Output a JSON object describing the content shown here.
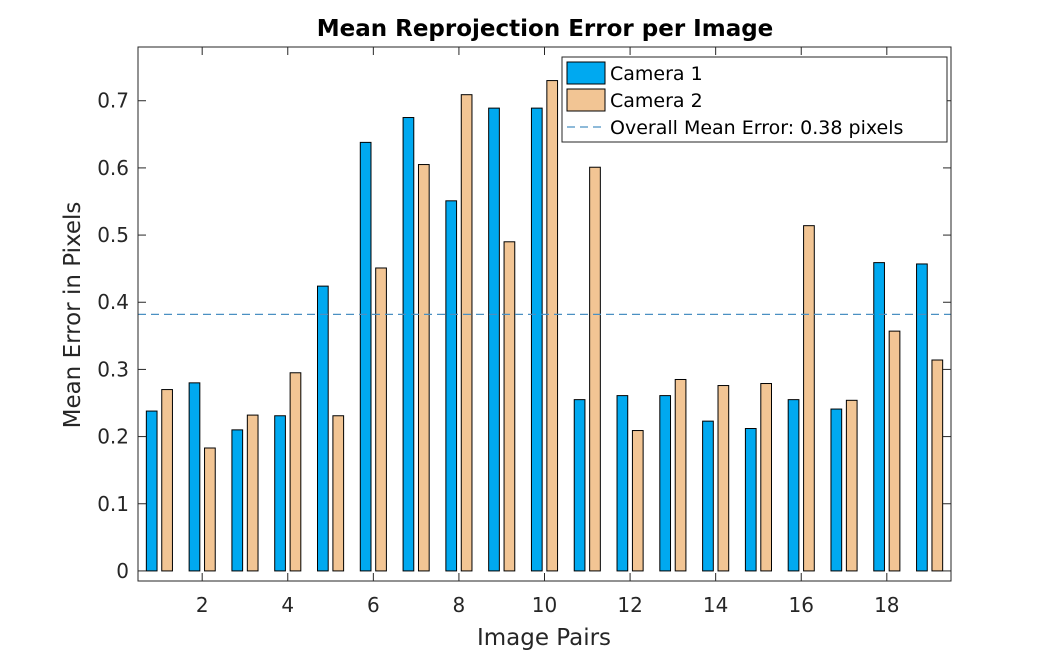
{
  "chart_data": {
    "type": "bar",
    "title": "Mean Reprojection Error per Image",
    "xlabel": "Image Pairs",
    "ylabel": "Mean Error in Pixels",
    "categories": [
      1,
      2,
      3,
      4,
      5,
      6,
      7,
      8,
      9,
      10,
      11,
      12,
      13,
      14,
      15,
      16,
      17,
      18,
      19
    ],
    "xlim": [
      0.5,
      19.5
    ],
    "ylim": [
      -0.015,
      0.78
    ],
    "xticks": [
      2,
      4,
      6,
      8,
      10,
      12,
      14,
      16,
      18
    ],
    "xtick_labels": [
      "2",
      "4",
      "6",
      "8",
      "10",
      "12",
      "14",
      "16",
      "18"
    ],
    "yticks": [
      0,
      0.1,
      0.2,
      0.3,
      0.4,
      0.5,
      0.6,
      0.7
    ],
    "ytick_labels": [
      "0",
      "0.1",
      "0.2",
      "0.3",
      "0.4",
      "0.5",
      "0.6",
      "0.7"
    ],
    "grid": false,
    "legend_position": "top-right",
    "series": [
      {
        "name": "Camera 1",
        "color": "#00A9F0",
        "values": [
          0.238,
          0.28,
          0.21,
          0.231,
          0.424,
          0.638,
          0.675,
          0.551,
          0.689,
          0.689,
          0.255,
          0.261,
          0.261,
          0.223,
          0.212,
          0.255,
          0.241,
          0.459,
          0.457
        ]
      },
      {
        "name": "Camera 2",
        "color": "#F2C594",
        "values": [
          0.27,
          0.183,
          0.232,
          0.295,
          0.231,
          0.451,
          0.605,
          0.709,
          0.49,
          0.73,
          0.601,
          0.209,
          0.285,
          0.276,
          0.279,
          0.514,
          0.254,
          0.357,
          0.314
        ]
      }
    ],
    "reference_line": {
      "label": "Overall Mean Error: 0.38 pixels",
      "value": 0.382,
      "color": "#4A90C2"
    }
  }
}
